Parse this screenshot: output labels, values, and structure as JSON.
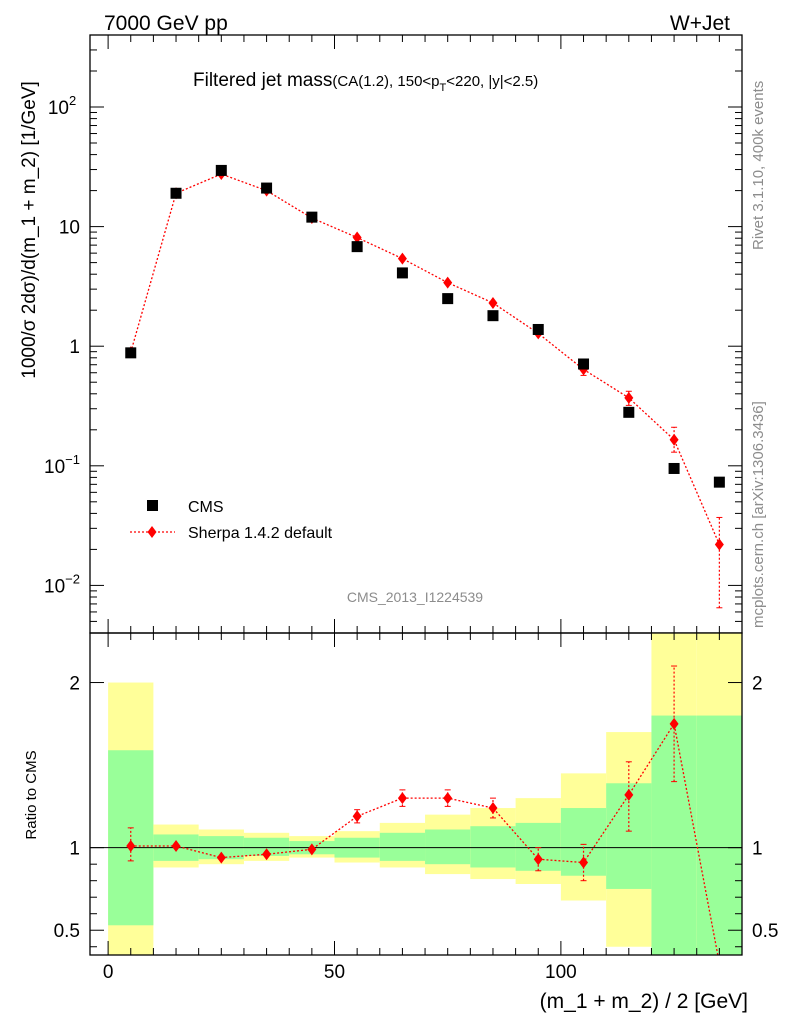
{
  "header": {
    "left": "7000 GeV pp",
    "right": "W+Jet"
  },
  "side_labels": {
    "rivet": "Rivet 3.1.10,  400k events",
    "mcplots": "mcplots.cern.ch [arXiv:1306.3436]"
  },
  "chart_data": [
    {
      "type": "scatter",
      "title_main": "Filtered jet mass",
      "title_sub_1": "(CA(1.2), 150<p",
      "title_sub_2": "T",
      "title_sub_3": "<220, |y|<2.5)",
      "ylabel": "1000/σ 2dσ)/d(m_1 + m_2) [1/GeV]",
      "analysis_id": "CMS_2013_I1224539",
      "yscale": "log",
      "xlim": [
        -4,
        140
      ],
      "ylim": [
        0.004,
        400
      ],
      "y_ticks": [
        {
          "base": "10",
          "exp": "−2"
        },
        {
          "base": "10",
          "exp": "−1"
        },
        {
          "base": "1",
          "exp": ""
        },
        {
          "base": "10",
          "exp": ""
        },
        {
          "base": "10",
          "exp": "2"
        }
      ],
      "legend": [
        {
          "label": "CMS",
          "color": "#000000",
          "marker": "square"
        },
        {
          "label": "Sherpa 1.4.2 default",
          "color": "#ff0000",
          "marker": "diamond",
          "line": "dotted"
        }
      ],
      "x": [
        5,
        15,
        25,
        35,
        45,
        55,
        65,
        75,
        85,
        95,
        105,
        115,
        125,
        135
      ],
      "cms": [
        0.88,
        19.0,
        29.5,
        21.0,
        12.0,
        6.8,
        4.1,
        2.5,
        1.8,
        1.38,
        0.71,
        0.28,
        0.095,
        0.073
      ],
      "sherpa": [
        0.89,
        19.0,
        27.5,
        20.0,
        11.8,
        8.1,
        5.4,
        3.4,
        2.3,
        1.28,
        0.64,
        0.37,
        0.165,
        0.022
      ],
      "sherpa_err_lo": [
        0.83,
        18.0,
        25.0,
        18.5,
        11.0,
        7.6,
        5.0,
        3.15,
        2.1,
        1.18,
        0.57,
        0.32,
        0.13,
        0.0065
      ],
      "sherpa_err_hi": [
        0.95,
        20.0,
        30.0,
        21.5,
        12.6,
        8.6,
        5.8,
        3.65,
        2.5,
        1.38,
        0.71,
        0.42,
        0.21,
        0.037
      ]
    },
    {
      "type": "scatter",
      "ylabel": "Ratio to CMS",
      "xlabel": "(m_1 + m_2) / 2 [GeV]",
      "xlim": [
        -4,
        140
      ],
      "ylim": [
        0.35,
        2.3
      ],
      "x_ticks": [
        "0",
        "50",
        "100"
      ],
      "y_ticks": [
        "0.5",
        "1",
        "2"
      ],
      "y_tick_values": [
        0.5,
        1,
        2
      ],
      "x_tick_values": [
        0,
        50,
        100
      ],
      "bins": [
        0,
        10,
        20,
        30,
        40,
        50,
        60,
        70,
        80,
        90,
        100,
        110,
        120,
        130,
        140
      ],
      "band_yellow_lo": [
        0.35,
        0.88,
        0.9,
        0.92,
        0.94,
        0.91,
        0.88,
        0.84,
        0.81,
        0.78,
        0.68,
        0.4,
        0.35,
        0.35
      ],
      "band_yellow_hi": [
        2.0,
        1.14,
        1.11,
        1.09,
        1.07,
        1.1,
        1.15,
        1.2,
        1.24,
        1.3,
        1.45,
        1.7,
        2.3,
        2.3
      ],
      "band_green_lo": [
        0.53,
        0.92,
        0.93,
        0.95,
        0.96,
        0.94,
        0.92,
        0.9,
        0.88,
        0.86,
        0.83,
        0.75,
        0.35,
        0.35
      ],
      "band_green_hi": [
        1.59,
        1.08,
        1.07,
        1.06,
        1.04,
        1.06,
        1.09,
        1.11,
        1.13,
        1.15,
        1.24,
        1.39,
        1.8,
        1.8
      ],
      "x": [
        5,
        15,
        25,
        35,
        45,
        55,
        65,
        75,
        85,
        95,
        105,
        115,
        125,
        135
      ],
      "ratio": [
        1.01,
        1.01,
        0.94,
        0.96,
        0.99,
        1.19,
        1.3,
        1.3,
        1.24,
        0.93,
        0.91,
        1.32,
        1.75,
        0.3
      ],
      "ratio_err_lo": [
        0.92,
        0.98,
        0.92,
        0.94,
        0.97,
        1.15,
        1.25,
        1.25,
        1.18,
        0.86,
        0.8,
        1.1,
        1.4,
        0.3
      ],
      "ratio_err_hi": [
        1.12,
        1.03,
        0.96,
        0.98,
        1.01,
        1.23,
        1.35,
        1.35,
        1.3,
        1.0,
        1.02,
        1.52,
        2.1,
        0.3
      ]
    }
  ]
}
